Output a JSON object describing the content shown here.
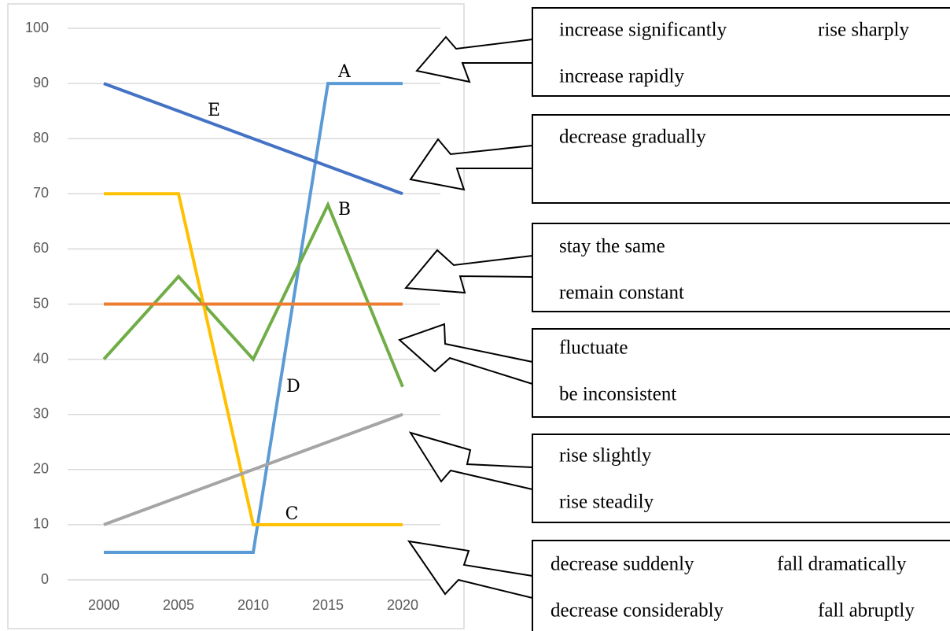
{
  "chart_data": {
    "type": "line",
    "categories": [
      "2000",
      "2005",
      "2010",
      "2015",
      "2020"
    ],
    "series": [
      {
        "color": "#5b9bd5",
        "values": [
          5,
          5,
          5,
          90,
          90
        ]
      },
      {
        "color": "#4472c4",
        "values": [
          90,
          85,
          80,
          75,
          70
        ]
      },
      {
        "color": "#70ad47",
        "values": [
          40,
          55,
          40,
          68,
          35
        ]
      },
      {
        "color": "#ffc000",
        "values": [
          70,
          70,
          10,
          10,
          10
        ]
      },
      {
        "color": "#ed7d31",
        "values": [
          50,
          50,
          50,
          50,
          50
        ]
      },
      {
        "color": "#a5a5a5",
        "values": [
          10,
          15,
          20,
          25,
          30
        ]
      }
    ],
    "ylim": [
      0,
      100
    ],
    "yticks": [
      0,
      10,
      20,
      30,
      40,
      50,
      60,
      70,
      80,
      90,
      100
    ],
    "grid": true,
    "annotations": [
      "A",
      "E",
      "B",
      "D",
      "C"
    ]
  },
  "boxes": [
    [
      "increase significantly",
      "rise sharply",
      "increase rapidly"
    ],
    [
      "decrease gradually"
    ],
    [
      "stay the same",
      "remain constant"
    ],
    [
      "fluctuate",
      "be inconsistent"
    ],
    [
      "rise slightly",
      "rise steadily"
    ],
    [
      "decrease suddenly",
      "fall dramatically",
      "decrease considerably",
      "fall abruptly"
    ]
  ]
}
